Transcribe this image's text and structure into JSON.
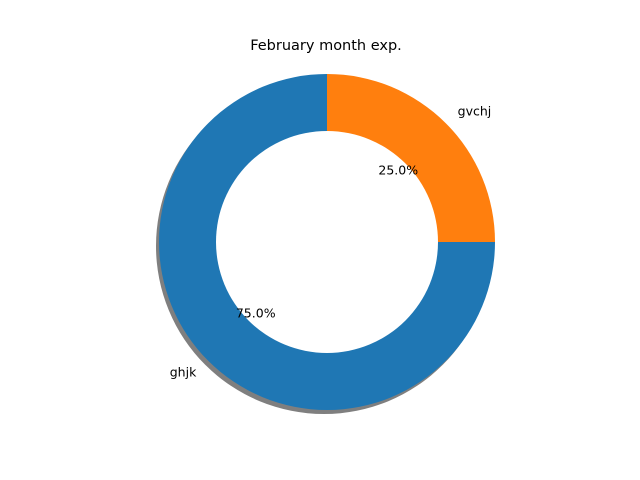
{
  "chart_data": {
    "type": "pie",
    "title": "February month exp.",
    "categories": [
      "ghjk",
      "gvchj"
    ],
    "values": [
      75,
      25
    ],
    "pct_labels": [
      "75.0%",
      "25.0%"
    ],
    "colors": [
      "#1f77b4",
      "#ff7f0e"
    ],
    "donut": true,
    "shadow": true
  }
}
